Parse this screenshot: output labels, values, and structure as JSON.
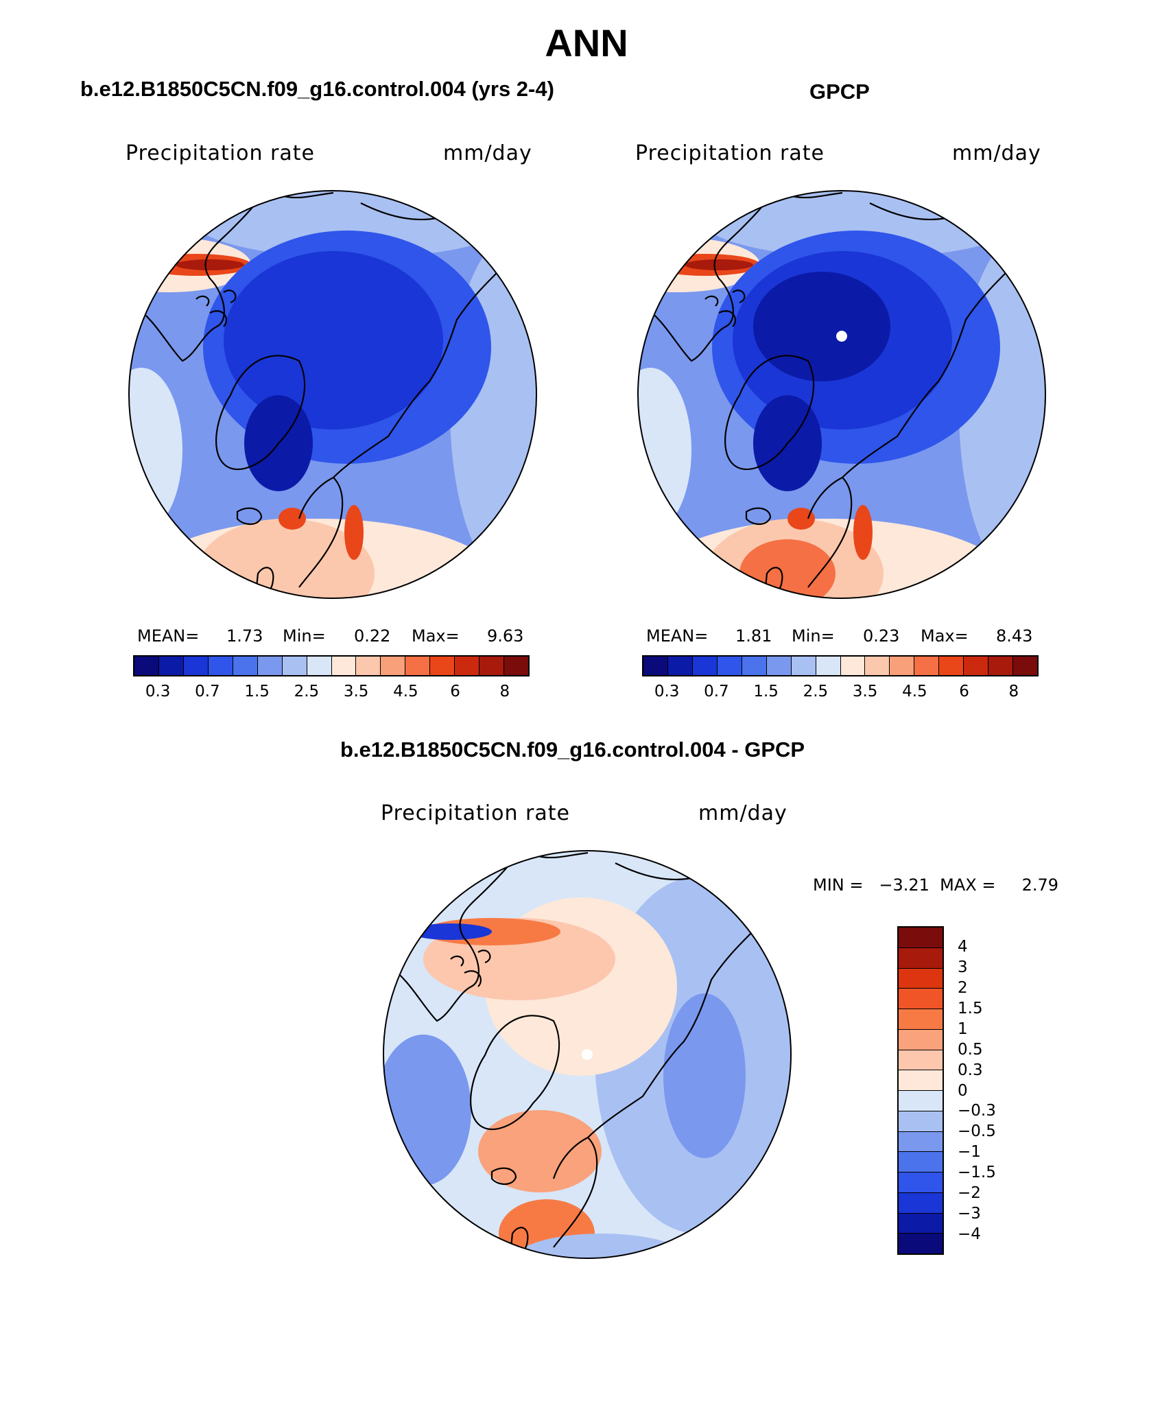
{
  "title": "ANN",
  "colors": {
    "abs_scale": [
      "#0a0a7a",
      "#0c1aa8",
      "#1a36d6",
      "#2f55ea",
      "#4a73ec",
      "#7a98ee",
      "#a9c0f2",
      "#d8e6f8",
      "#fde8d9",
      "#fbc8ad",
      "#f7a07a",
      "#f57044",
      "#e9461a",
      "#cc2a0e",
      "#a81a0c",
      "#7a0c0c"
    ],
    "diff_scale": [
      "#7a0c0c",
      "#a81a0c",
      "#dc3510",
      "#f05528",
      "#f77a45",
      "#f9a27b",
      "#fcc7ad",
      "#fde8d9",
      "#d8e6f8",
      "#a9c0f2",
      "#7a98ee",
      "#4a73ec",
      "#2f55ea",
      "#1a36d6",
      "#0c1aa8",
      "#0a0a7a"
    ]
  },
  "panels": [
    {
      "title": "b.e12.B1850C5CN.f09_g16.control.004 (yrs 2-4)",
      "variable": "Precipitation  rate",
      "units": "mm/day",
      "stats": {
        "mean_label": "MEAN=",
        "mean": "1.73",
        "min_label": "Min=",
        "min": "0.22",
        "max_label": "Max=",
        "max": "9.63"
      },
      "ticks": [
        "0.3",
        "0.7",
        "1.5",
        "2.5",
        "3.5",
        "4.5",
        "6",
        "8"
      ]
    },
    {
      "title": "GPCP",
      "variable": "Precipitation  rate",
      "units": "mm/day",
      "stats": {
        "mean_label": "MEAN=",
        "mean": "1.81",
        "min_label": "Min=",
        "min": "0.23",
        "max_label": "Max=",
        "max": "8.43"
      },
      "ticks": [
        "0.3",
        "0.7",
        "1.5",
        "2.5",
        "3.5",
        "4.5",
        "6",
        "8"
      ]
    }
  ],
  "diff_panel": {
    "title": "b.e12.B1850C5CN.f09_g16.control.004 - GPCP",
    "variable": "Precipitation  rate",
    "units": "mm/day",
    "stats": "MIN =   −3.21  MAX =     2.79",
    "ticks": [
      "4",
      "3",
      "2",
      "1.5",
      "1",
      "0.5",
      "0.3",
      "0",
      "−0.3",
      "−0.5",
      "−1",
      "−1.5",
      "−2",
      "−3",
      "−4"
    ]
  }
}
